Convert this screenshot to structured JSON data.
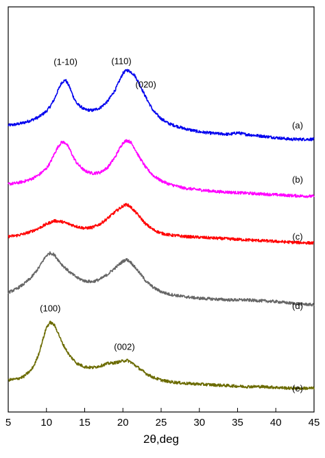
{
  "chart_data": {
    "type": "line",
    "xlabel": "2θ,deg",
    "ylabel": "",
    "xlim": [
      5,
      45
    ],
    "xticks": [
      5,
      10,
      15,
      20,
      25,
      30,
      35,
      40,
      45
    ],
    "grid": false,
    "series": [
      {
        "name": "(a)",
        "color": "#0000ee",
        "x": [
          5,
          6,
          7,
          8,
          9,
          10,
          10.5,
          11,
          11.5,
          12,
          12.5,
          13,
          13.5,
          14,
          15,
          16,
          17,
          18,
          19,
          19.5,
          20,
          20.5,
          21,
          21.5,
          22,
          23,
          24,
          25,
          26,
          28,
          30,
          32,
          34,
          35,
          36,
          38,
          40,
          42,
          45
        ],
        "y": [
          0.23,
          0.24,
          0.26,
          0.29,
          0.33,
          0.4,
          0.46,
          0.54,
          0.65,
          0.75,
          0.78,
          0.7,
          0.58,
          0.49,
          0.42,
          0.41,
          0.44,
          0.52,
          0.66,
          0.76,
          0.86,
          0.9,
          0.88,
          0.84,
          0.76,
          0.57,
          0.4,
          0.31,
          0.25,
          0.19,
          0.15,
          0.13,
          0.12,
          0.14,
          0.12,
          0.1,
          0.08,
          0.06,
          0.06
        ]
      },
      {
        "name": "(b)",
        "color": "#ff00ff",
        "x": [
          5,
          6,
          7,
          8,
          9,
          10,
          10.5,
          11,
          11.5,
          12,
          12.5,
          13,
          13.5,
          14,
          15,
          16,
          17,
          18,
          19,
          19.5,
          20,
          20.5,
          21,
          21.5,
          22,
          23,
          24,
          25,
          26,
          28,
          30,
          32,
          34,
          36,
          38,
          40,
          42,
          45
        ],
        "y": [
          0.2,
          0.21,
          0.23,
          0.26,
          0.31,
          0.39,
          0.46,
          0.56,
          0.65,
          0.71,
          0.7,
          0.63,
          0.53,
          0.45,
          0.36,
          0.33,
          0.34,
          0.4,
          0.53,
          0.62,
          0.7,
          0.73,
          0.71,
          0.64,
          0.55,
          0.4,
          0.3,
          0.24,
          0.2,
          0.15,
          0.13,
          0.11,
          0.1,
          0.09,
          0.08,
          0.07,
          0.06,
          0.05
        ]
      },
      {
        "name": "(c)",
        "color": "#ff0000",
        "x": [
          5,
          6,
          7,
          8,
          9,
          10,
          11,
          12,
          13,
          14,
          15,
          16,
          17,
          18,
          19,
          20,
          20.5,
          21,
          22,
          23,
          24,
          25,
          26,
          28,
          30,
          32,
          34,
          36,
          38,
          40,
          42,
          45
        ],
        "y": [
          0.23,
          0.24,
          0.26,
          0.29,
          0.33,
          0.38,
          0.42,
          0.41,
          0.38,
          0.35,
          0.33,
          0.34,
          0.38,
          0.45,
          0.53,
          0.6,
          0.62,
          0.59,
          0.49,
          0.38,
          0.31,
          0.27,
          0.25,
          0.23,
          0.22,
          0.21,
          0.2,
          0.19,
          0.18,
          0.17,
          0.16,
          0.15
        ]
      },
      {
        "name": "(d)",
        "color": "#666666",
        "x": [
          5,
          6,
          7,
          8,
          9,
          9.5,
          10,
          10.5,
          11,
          11.5,
          12,
          13,
          14,
          15,
          16,
          17,
          18,
          19,
          20,
          20.5,
          21,
          22,
          23,
          24,
          25,
          26,
          28,
          30,
          32,
          34,
          36,
          38,
          40,
          42,
          45
        ],
        "y": [
          0.3,
          0.34,
          0.4,
          0.48,
          0.6,
          0.68,
          0.75,
          0.78,
          0.76,
          0.7,
          0.64,
          0.55,
          0.48,
          0.44,
          0.43,
          0.46,
          0.52,
          0.6,
          0.68,
          0.7,
          0.67,
          0.56,
          0.44,
          0.36,
          0.31,
          0.28,
          0.25,
          0.23,
          0.22,
          0.21,
          0.21,
          0.2,
          0.19,
          0.17,
          0.15
        ]
      },
      {
        "name": "(e)",
        "color": "#6b6b00",
        "x": [
          5,
          6,
          7,
          8,
          8.5,
          9,
          9.5,
          10,
          10.5,
          11,
          11.5,
          12,
          13,
          14,
          15,
          16,
          17,
          18,
          19,
          20,
          20.5,
          21,
          22,
          23,
          24,
          25,
          26,
          28,
          30,
          32,
          34,
          36,
          38,
          40,
          42,
          45
        ],
        "y": [
          0.18,
          0.19,
          0.22,
          0.3,
          0.38,
          0.5,
          0.66,
          0.82,
          0.88,
          0.85,
          0.76,
          0.64,
          0.48,
          0.38,
          0.34,
          0.33,
          0.35,
          0.38,
          0.39,
          0.41,
          0.42,
          0.4,
          0.33,
          0.26,
          0.21,
          0.18,
          0.16,
          0.14,
          0.13,
          0.12,
          0.11,
          0.1,
          0.1,
          0.09,
          0.08,
          0.08
        ]
      }
    ],
    "annotations": [
      {
        "text": "(1-10)",
        "series": 0,
        "x": 12.5
      },
      {
        "text": "(110)",
        "series": 0,
        "x": 19.8
      },
      {
        "text": "(020)",
        "series": 0,
        "x": 23.0
      },
      {
        "text": "(100)",
        "series": 4,
        "x": 10.5
      },
      {
        "text": "(002)",
        "series": 4,
        "x": 20.2
      }
    ]
  }
}
